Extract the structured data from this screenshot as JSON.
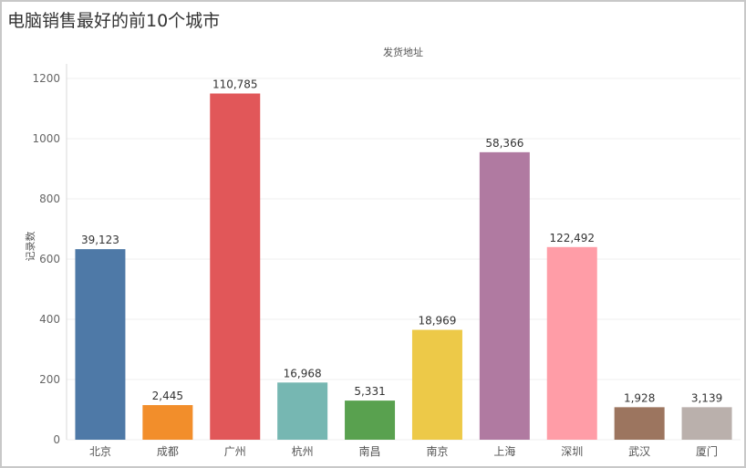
{
  "chart_data": {
    "type": "bar",
    "title": "电脑销售最好的前10个城市",
    "header_label": "发货地址",
    "ylabel": "记录数",
    "ylim": [
      0,
      1270
    ],
    "yticks": [
      0,
      200,
      400,
      600,
      800,
      1000,
      1200
    ],
    "grid": true,
    "categories": [
      "北京",
      "成都",
      "广州",
      "杭州",
      "南昌",
      "南京",
      "上海",
      "深圳",
      "武汉",
      "厦门"
    ],
    "values": [
      633,
      115,
      1150,
      190,
      130,
      365,
      955,
      640,
      108,
      108
    ],
    "data_labels": [
      "39,123",
      "2,445",
      "110,785",
      "16,968",
      "5,331",
      "18,969",
      "58,366",
      "122,492",
      "1,928",
      "3,139"
    ],
    "colors": [
      "#4e79a7",
      "#f28e2b",
      "#e15759",
      "#76b7b2",
      "#59a14f",
      "#edc948",
      "#b07aa1",
      "#ff9da7",
      "#9c755f",
      "#bab0ac"
    ]
  }
}
